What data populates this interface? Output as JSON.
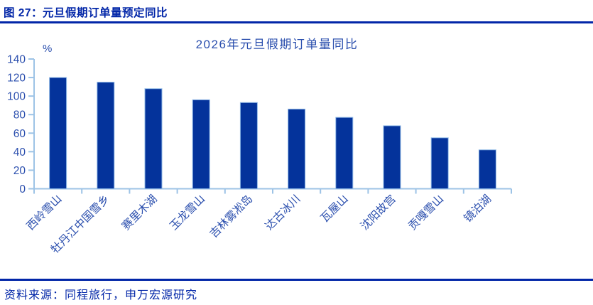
{
  "header": {
    "title": "图 27：元旦假期订单量预定同比"
  },
  "footer": {
    "source": "资料来源：同程旅行，申万宏源研究"
  },
  "colors": {
    "header_text": "#0226a8",
    "divider": "#0226a8",
    "chart_text": "#2b4fae",
    "bar_fill": "#04339b",
    "bar_border": "#8fb8e6",
    "axis_line": "#9dc3e6",
    "background": "#ffffff"
  },
  "chart_data": {
    "type": "bar",
    "title": "2026年元旦假期订单量同比",
    "unit_label": "%",
    "categories": [
      "西岭雪山",
      "牡丹江中国雪乡",
      "赛里木湖",
      "玉龙雪山",
      "吉林雾凇岛",
      "达古冰川",
      "瓦屋山",
      "沈阳故宫",
      "贡嘎雪山",
      "镜泊湖"
    ],
    "values": [
      120,
      115,
      108,
      96,
      93,
      86,
      77,
      68,
      55,
      42
    ],
    "xlabel": "",
    "ylabel": "%",
    "ylim": [
      0,
      140
    ],
    "ytick_step": 20,
    "grid": false,
    "legend_position": "none",
    "xlabel_rotation_deg": 45
  }
}
